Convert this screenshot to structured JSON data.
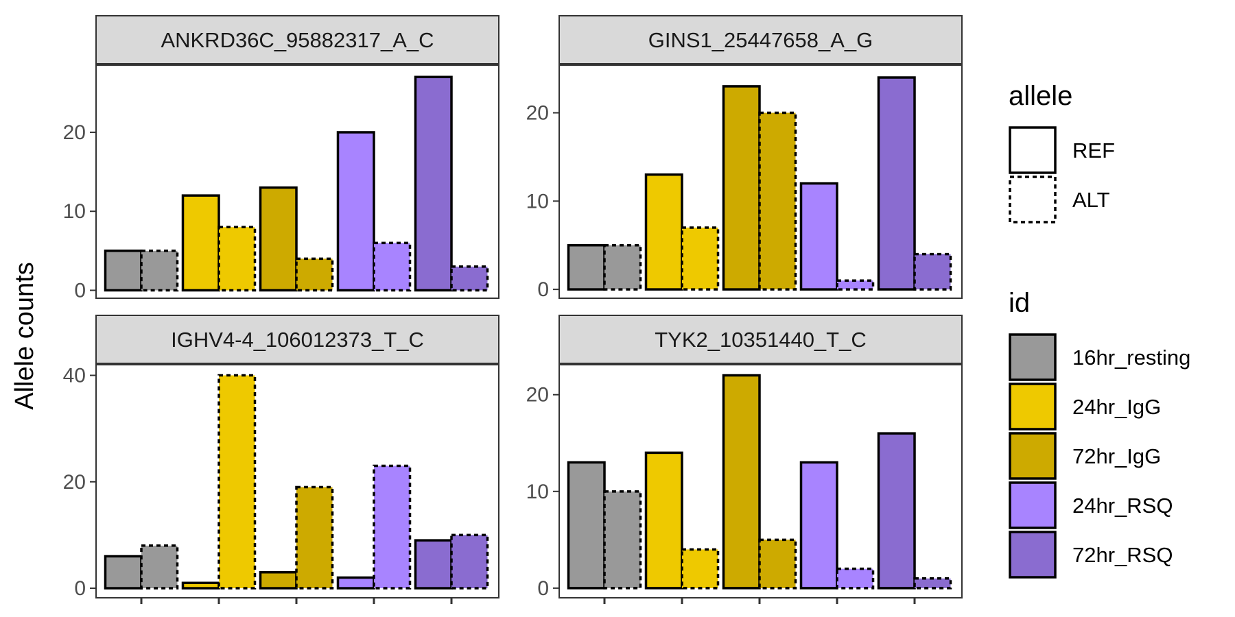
{
  "colors": {
    "16hr_resting": "#999999",
    "24hr_IgG": "#EEC900",
    "72hr_IgG": "#CDAA00",
    "24hr_RSQ": "#A884FF",
    "72hr_RSQ": "#8A6CD0",
    "strip_fill": "#d9d9d9",
    "panel_border": "#333333",
    "tick_text": "#4d4d4d"
  },
  "chart_data": {
    "type": "bar",
    "ylabel": "Allele counts",
    "xlabel": "",
    "facet_layout": "2x2",
    "categories": [
      "16hr_resting",
      "24hr_IgG",
      "72hr_IgG",
      "24hr_RSQ",
      "72hr_RSQ"
    ],
    "alleles": [
      "REF",
      "ALT"
    ],
    "grid": false,
    "legend_placement": "right",
    "legends": [
      {
        "title": "allele",
        "entries": [
          {
            "label": "REF",
            "linetype": "solid"
          },
          {
            "label": "ALT",
            "linetype": "dashed"
          }
        ]
      },
      {
        "title": "id",
        "entries": [
          "16hr_resting",
          "24hr_IgG",
          "72hr_IgG",
          "24hr_RSQ",
          "72hr_RSQ"
        ]
      }
    ],
    "panels": [
      {
        "title": "ANKRD36C_95882317_A_C",
        "ylim": [
          -1,
          28.5
        ],
        "yticks": [
          0,
          10,
          20
        ],
        "series": [
          {
            "name": "REF",
            "values": [
              5,
              12,
              13,
              20,
              27
            ]
          },
          {
            "name": "ALT",
            "values": [
              5,
              8,
              4,
              6,
              3
            ]
          }
        ]
      },
      {
        "title": "GINS1_25447658_A_G",
        "ylim": [
          -1,
          25.4
        ],
        "yticks": [
          0,
          10,
          20
        ],
        "series": [
          {
            "name": "REF",
            "values": [
              5,
              13,
              23,
              12,
              24
            ]
          },
          {
            "name": "ALT",
            "values": [
              5,
              7,
              20,
              1,
              4
            ]
          }
        ]
      },
      {
        "title": "IGHV4-4_106012373_T_C",
        "ylim": [
          -1.8,
          42
        ],
        "yticks": [
          0,
          20,
          40
        ],
        "series": [
          {
            "name": "REF",
            "values": [
              6,
              1,
              3,
              2,
              9
            ]
          },
          {
            "name": "ALT",
            "values": [
              8,
              40,
              19,
              23,
              10
            ]
          }
        ]
      },
      {
        "title": "TYK2_10351440_T_C",
        "ylim": [
          -1,
          23.1
        ],
        "yticks": [
          0,
          10,
          20
        ],
        "series": [
          {
            "name": "REF",
            "values": [
              13,
              14,
              22,
              13,
              16
            ]
          },
          {
            "name": "ALT",
            "values": [
              10,
              4,
              5,
              2,
              1
            ]
          }
        ]
      }
    ]
  }
}
